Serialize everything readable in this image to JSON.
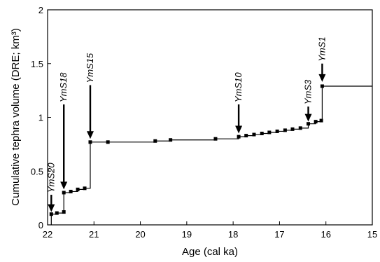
{
  "chart_data": {
    "type": "line",
    "step": true,
    "xlabel": "Age (cal ka)",
    "ylabel": "Cumulative tephra volume (DRE; km³)",
    "xlim": [
      22,
      15
    ],
    "ylim": [
      0,
      2
    ],
    "x_reversed": true,
    "xticks": [
      22,
      21,
      20,
      19,
      18,
      17,
      16,
      15
    ],
    "yticks": [
      0,
      0.5,
      1,
      1.5,
      2
    ],
    "ytick_labels": [
      "0",
      "0.5",
      "1",
      "1.5",
      "2"
    ],
    "grid": false,
    "points": [
      {
        "x": 21.92,
        "y": 0.0,
        "marker": false
      },
      {
        "x": 21.92,
        "y": 0.1,
        "marker": true
      },
      {
        "x": 21.8,
        "y": 0.11,
        "marker": true
      },
      {
        "x": 21.65,
        "y": 0.12,
        "marker": true
      },
      {
        "x": 21.65,
        "y": 0.3,
        "marker": true
      },
      {
        "x": 21.5,
        "y": 0.31,
        "marker": true
      },
      {
        "x": 21.35,
        "y": 0.33,
        "marker": true
      },
      {
        "x": 21.2,
        "y": 0.34,
        "marker": true
      },
      {
        "x": 21.08,
        "y": 0.77,
        "marker": true
      },
      {
        "x": 20.7,
        "y": 0.77,
        "marker": true
      },
      {
        "x": 19.68,
        "y": 0.78,
        "marker": true
      },
      {
        "x": 19.35,
        "y": 0.79,
        "marker": true
      },
      {
        "x": 18.38,
        "y": 0.8,
        "marker": true
      },
      {
        "x": 17.88,
        "y": 0.82,
        "marker": true
      },
      {
        "x": 17.72,
        "y": 0.83,
        "marker": true
      },
      {
        "x": 17.55,
        "y": 0.84,
        "marker": true
      },
      {
        "x": 17.38,
        "y": 0.85,
        "marker": true
      },
      {
        "x": 17.22,
        "y": 0.86,
        "marker": true
      },
      {
        "x": 17.05,
        "y": 0.87,
        "marker": true
      },
      {
        "x": 16.88,
        "y": 0.88,
        "marker": true
      },
      {
        "x": 16.72,
        "y": 0.89,
        "marker": true
      },
      {
        "x": 16.55,
        "y": 0.9,
        "marker": true
      },
      {
        "x": 16.38,
        "y": 0.94,
        "marker": true
      },
      {
        "x": 16.22,
        "y": 0.96,
        "marker": true
      },
      {
        "x": 16.1,
        "y": 0.97,
        "marker": true
      },
      {
        "x": 16.08,
        "y": 1.29,
        "marker": true
      },
      {
        "x": 15.0,
        "y": 1.29,
        "marker": false
      }
    ],
    "annotations": [
      {
        "text": "YmS20",
        "x": 21.92,
        "arrow_top": 0.28,
        "arrow_tip": 0.12
      },
      {
        "text": "YmS18",
        "x": 21.65,
        "arrow_top": 1.12,
        "arrow_tip": 0.33
      },
      {
        "text": "YmS15",
        "x": 21.08,
        "arrow_top": 1.3,
        "arrow_tip": 0.8
      },
      {
        "text": "YmS10",
        "x": 17.88,
        "arrow_top": 1.12,
        "arrow_tip": 0.85
      },
      {
        "text": "YmS3",
        "x": 16.38,
        "arrow_top": 1.1,
        "arrow_tip": 0.96
      },
      {
        "text": "YmS1",
        "x": 16.08,
        "arrow_top": 1.5,
        "arrow_tip": 1.33
      }
    ]
  }
}
